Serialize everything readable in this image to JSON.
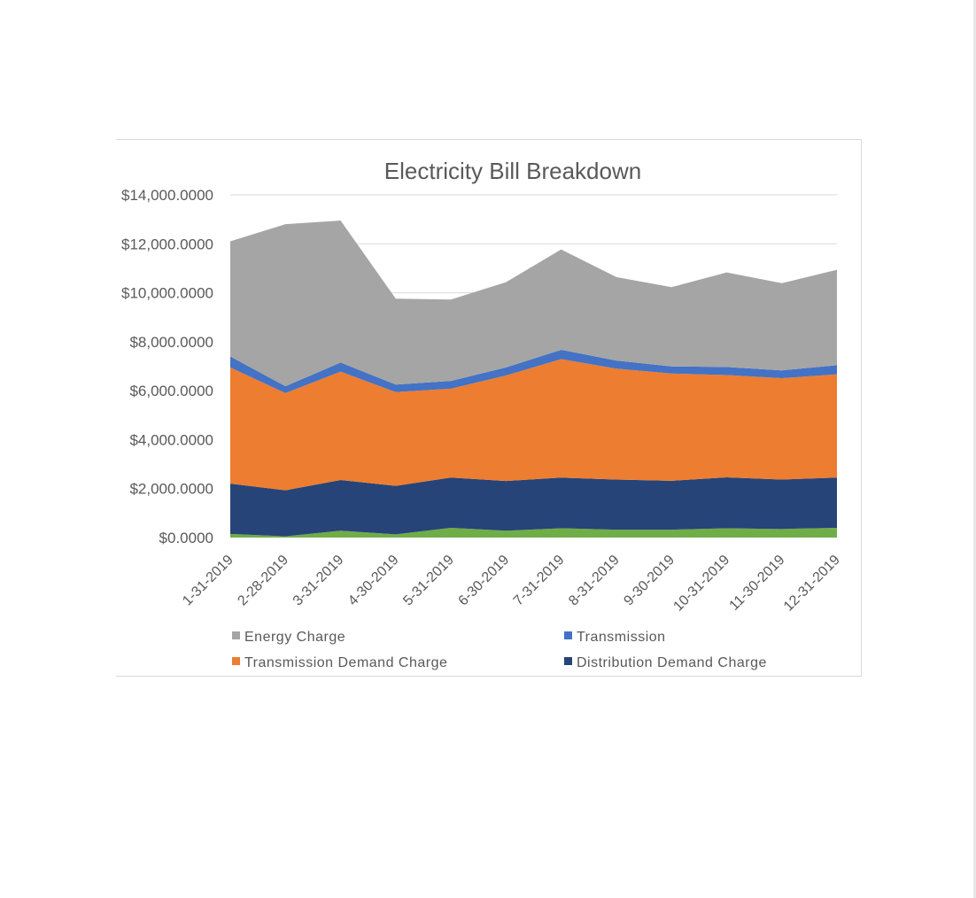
{
  "chart_data": {
    "type": "area",
    "stacked": true,
    "title": "Electricity Bill Breakdown",
    "xlabel": "",
    "ylabel": "",
    "ylim": [
      0,
      14000
    ],
    "yticks": [
      0,
      2000,
      4000,
      6000,
      8000,
      10000,
      12000,
      14000
    ],
    "ytick_labels": [
      "$0.0000",
      "$2,000.0000",
      "$4,000.0000",
      "$6,000.0000",
      "$8,000.0000",
      "$10,000.0000",
      "$12,000.0000",
      "$14,000.0000"
    ],
    "categories": [
      "1-31-2019",
      "2-28-2019",
      "3-31-2019",
      "4-30-2019",
      "5-31-2019",
      "6-30-2019",
      "7-31-2019",
      "8-31-2019",
      "9-30-2019",
      "10-31-2019",
      "11-30-2019",
      "12-31-2019"
    ],
    "grid": "horizontal",
    "legend_position": "bottom",
    "series": [
      {
        "name": "",
        "color": "#70ad47",
        "in_legend": false,
        "values": [
          150,
          50,
          280,
          130,
          400,
          280,
          380,
          320,
          320,
          380,
          350,
          400
        ]
      },
      {
        "name": "Distribution Demand Charge",
        "color": "#264478",
        "in_legend": true,
        "values": [
          2050,
          1880,
          2070,
          1980,
          2050,
          2030,
          2070,
          2050,
          2000,
          2080,
          2020,
          2050
        ]
      },
      {
        "name": "Transmission Demand Charge",
        "color": "#ed7d31",
        "in_legend": true,
        "values": [
          4750,
          3970,
          4430,
          3830,
          3630,
          4310,
          4840,
          4530,
          4380,
          4180,
          4140,
          4220
        ]
      },
      {
        "name": "Transmission",
        "color": "#4472c4",
        "in_legend": true,
        "values": [
          450,
          280,
          370,
          310,
          320,
          330,
          380,
          330,
          290,
          330,
          320,
          370
        ]
      },
      {
        "name": "Energy Charge",
        "color": "#a5a5a5",
        "in_legend": true,
        "values": [
          4700,
          6620,
          5800,
          3510,
          3320,
          3480,
          4100,
          3410,
          3240,
          3860,
          3560,
          3900
        ]
      }
    ]
  },
  "legend_order": [
    "Energy Charge",
    "Transmission",
    "Transmission Demand Charge",
    "Distribution Demand Charge"
  ]
}
